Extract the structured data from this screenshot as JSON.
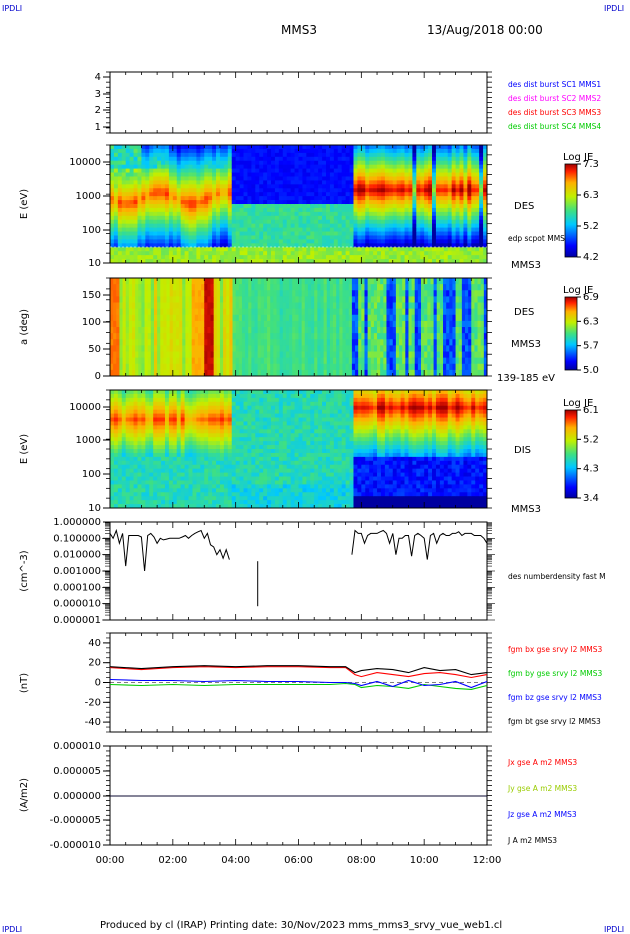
{
  "header": {
    "corner_label": "IPDLI",
    "spacecraft": "MMS3",
    "datetime": "13/Aug/2018 00:00"
  },
  "footer": {
    "text": "Produced by cl (IRAP)   Printing date: 30/Nov/2023   mms_mms3_srvy_vue_web1.cl"
  },
  "colors": {
    "mms1": "#0000ff",
    "mms2": "#ff00ff",
    "mms3": "#ff0000",
    "mms4": "#00cc00",
    "bx": "#ff0000",
    "by": "#00cc00",
    "bz": "#0000ff",
    "bt": "#000000"
  },
  "chart_data": [
    {
      "type": "table",
      "panel": "burst-flags",
      "y_ticks": [
        "1",
        "2",
        "3",
        "4"
      ],
      "legend": [
        {
          "label": "des dist burst SC1 MMS1",
          "color": "#0000ff"
        },
        {
          "label": "des dist burst SC2 MMS2",
          "color": "#ff00ff"
        },
        {
          "label": "des dist burst SC3 MMS3",
          "color": "#ff0000"
        },
        {
          "label": "des dist burst SC4 MMS4",
          "color": "#00cc00"
        }
      ]
    },
    {
      "type": "heatmap",
      "panel": "des-energy",
      "ylabel": "E (eV)",
      "y_scale": "log",
      "ylim": [
        10,
        30000
      ],
      "y_ticks": [
        "10",
        "100",
        "1000",
        "10000"
      ],
      "instrument": "DES",
      "spacecraft": "MMS3",
      "overlay": "edp scpot MMS3",
      "colorbar_title": "Log JE",
      "colorbar_ticks": [
        "7.3",
        "6.3",
        "5.2",
        "4.2"
      ]
    },
    {
      "type": "heatmap",
      "panel": "des-pitch",
      "ylabel": "a (deg)",
      "ylim": [
        0,
        180
      ],
      "y_ticks": [
        "0",
        "50",
        "100",
        "150"
      ],
      "instrument": "DES",
      "spacecraft": "MMS3",
      "energy_range": "139-185 eV",
      "colorbar_title": "Log JE",
      "colorbar_ticks": [
        "6.9",
        "6.3",
        "5.7",
        "5.0"
      ]
    },
    {
      "type": "heatmap",
      "panel": "dis-energy",
      "ylabel": "E (eV)",
      "y_scale": "log",
      "ylim": [
        10,
        30000
      ],
      "y_ticks": [
        "10",
        "100",
        "1000",
        "10000"
      ],
      "instrument": "DIS",
      "spacecraft": "MMS3",
      "colorbar_title": "Log JE",
      "colorbar_ticks": [
        "6.1",
        "5.2",
        "4.3",
        "3.4"
      ]
    },
    {
      "type": "line",
      "panel": "density",
      "ylabel": "(cm^-3)",
      "y_scale": "log",
      "y_ticks": [
        "0.000001",
        "0.000010",
        "0.000100",
        "0.001000",
        "0.010000",
        "0.100000",
        "1.000000"
      ],
      "series": [
        {
          "name": "des numberdensity fast M",
          "color": "#000000",
          "segments": [
            {
              "x": [
                0.0,
                0.1,
                0.2,
                0.3,
                0.4,
                0.5,
                0.6,
                0.7,
                0.8,
                0.9,
                1.0,
                1.1,
                1.2,
                1.3,
                1.4,
                1.5,
                1.6,
                1.7,
                1.8,
                1.9,
                2.0,
                2.1,
                2.2,
                2.3,
                2.4,
                2.5,
                2.6,
                2.7,
                2.8,
                2.9,
                3.0,
                3.1,
                3.2,
                3.3,
                3.4,
                3.5,
                3.6,
                3.7,
                3.8
              ],
              "y": [
                0.2,
                0.1,
                0.3,
                0.05,
                0.2,
                0.002,
                0.15,
                0.15,
                0.15,
                0.15,
                0.12,
                0.001,
                0.15,
                0.2,
                0.12,
                0.05,
                0.1,
                0.08,
                0.09,
                0.1,
                0.1,
                0.1,
                0.1,
                0.12,
                0.15,
                0.1,
                0.15,
                0.2,
                0.25,
                0.3,
                0.1,
                0.2,
                0.04,
                0.03,
                0.01,
                0.02,
                0.006,
                0.02,
                0.005
              ]
            },
            {
              "x": [
                4.7,
                4.7
              ],
              "y": [
                0.004,
                7e-06
              ]
            },
            {
              "x": [
                7.7,
                7.8,
                7.9,
                8.0,
                8.1,
                8.2,
                8.3,
                8.4,
                8.5,
                8.6,
                8.7,
                8.8,
                8.9,
                9.0,
                9.1,
                9.2,
                9.3,
                9.4,
                9.5,
                9.6,
                9.7,
                9.8,
                9.9,
                10.0,
                10.1,
                10.2,
                10.3,
                10.4,
                10.5,
                10.6,
                10.7,
                10.8,
                10.9,
                11.0,
                11.1,
                11.2,
                11.3,
                11.4,
                11.5,
                11.6,
                11.7,
                11.8,
                11.9,
                12.0
              ],
              "y": [
                0.01,
                0.3,
                0.2,
                0.2,
                0.05,
                0.15,
                0.2,
                0.2,
                0.2,
                0.25,
                0.3,
                0.2,
                0.05,
                0.2,
                0.01,
                0.1,
                0.1,
                0.15,
                0.15,
                0.008,
                0.15,
                0.2,
                0.15,
                0.1,
                0.005,
                0.15,
                0.2,
                0.05,
                0.15,
                0.2,
                0.15,
                0.15,
                0.2,
                0.2,
                0.25,
                0.15,
                0.2,
                0.2,
                0.2,
                0.15,
                0.15,
                0.15,
                0.1,
                0.05
              ]
            }
          ]
        }
      ]
    },
    {
      "type": "line",
      "panel": "magnetic-field",
      "ylabel": "(nT)",
      "ylim": [
        -50,
        50
      ],
      "y_ticks": [
        "-40",
        "-20",
        "0",
        "20",
        "40"
      ],
      "x": [
        0,
        1,
        2,
        3,
        4,
        5,
        6,
        7,
        7.5,
        7.8,
        8,
        8.5,
        9,
        9.5,
        10,
        10.5,
        11,
        11.5,
        12
      ],
      "series": [
        {
          "name": "fgm bx gse srvy l2 MMS3",
          "color": "#ff0000",
          "values": [
            15,
            13,
            15,
            16,
            15,
            16,
            16,
            15,
            15,
            8,
            6,
            10,
            8,
            6,
            9,
            10,
            8,
            5,
            8
          ]
        },
        {
          "name": "fgm by gse srvy l2 MMS3",
          "color": "#00cc00",
          "values": [
            -2,
            -3,
            -2,
            -3,
            -2,
            -2,
            -2,
            -2,
            -1,
            -2,
            -5,
            -3,
            -4,
            -6,
            -2,
            -4,
            -6,
            -7,
            -3
          ]
        },
        {
          "name": "fgm bz gse srvy l2 MMS3",
          "color": "#0000ff",
          "values": [
            3,
            2,
            2,
            1,
            2,
            1,
            1,
            0,
            0,
            -1,
            -3,
            1,
            -4,
            2,
            -3,
            -2,
            1,
            -5,
            1
          ]
        },
        {
          "name": "fgm bt gse srvy l2 MMS3",
          "color": "#000000",
          "values": [
            16,
            14,
            16,
            17,
            16,
            17,
            17,
            16,
            16,
            10,
            12,
            14,
            13,
            10,
            15,
            12,
            13,
            8,
            10
          ]
        }
      ]
    },
    {
      "type": "line",
      "panel": "current-density",
      "ylabel": "(A/m2)",
      "ylim": [
        -0.0001,
        0.0001
      ],
      "y_ticks": [
        "-0.000010",
        "-0.000005",
        "0.000000",
        "0.000005",
        "0.000010"
      ],
      "series": [
        {
          "name": "Jx gse A m2 MMS3",
          "color": "#ff0000",
          "values": [
            0,
            0
          ]
        },
        {
          "name": "Jy gse A m2 MMS3",
          "color": "#99cc00",
          "values": [
            0,
            0
          ]
        },
        {
          "name": "Jz gse A m2 MMS3",
          "color": "#0000ff",
          "values": [
            0,
            0
          ]
        },
        {
          "name": "J A m2 MMS3",
          "color": "#000000",
          "values": [
            0,
            0
          ]
        }
      ]
    }
  ],
  "time_axis": {
    "labels": [
      "00:00",
      "02:00",
      "04:00",
      "06:00",
      "08:00",
      "10:00",
      "12:00"
    ],
    "range_hours": [
      0,
      12
    ]
  }
}
